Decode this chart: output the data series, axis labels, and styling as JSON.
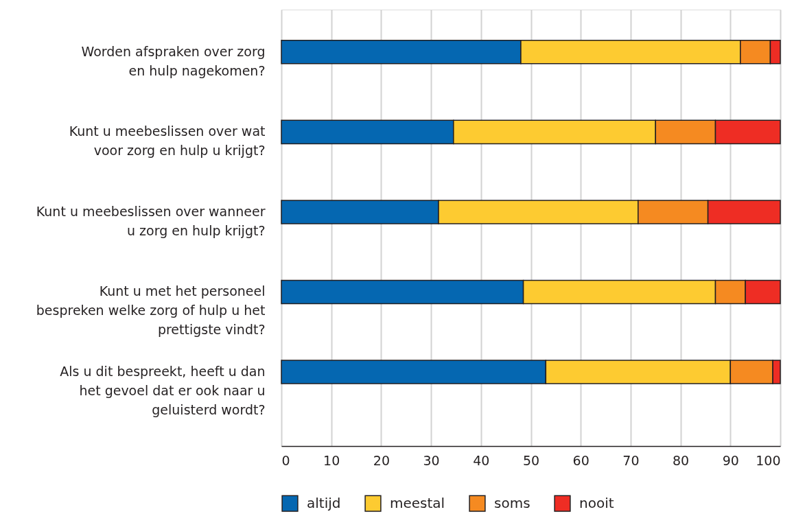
{
  "chart_data": {
    "type": "bar",
    "orientation": "horizontal",
    "stacked": true,
    "categories": [
      "Worden afspraken over zorg\nen hulp nagekomen?",
      "Kunt u meebeslissen over wat\nvoor zorg en hulp u krijgt?",
      "Kunt u meebeslissen over wanneer\nu zorg en hulp krijgt?",
      "Kunt u met het personeel\nbespreken welke zorg of hulp u het\nprettigste vindt?",
      "Als u dit bespreekt, heeft u dan\nhet gevoel dat er ook naar u\ngeluisterd wordt?"
    ],
    "series": [
      {
        "name": "altijd",
        "color": "#0567b1",
        "values": [
          48,
          34.5,
          31.5,
          48.5,
          53
        ]
      },
      {
        "name": "meestal",
        "color": "#fdcb31",
        "values": [
          44,
          40.5,
          40,
          38.5,
          37
        ]
      },
      {
        "name": "soms",
        "color": "#f58a21",
        "values": [
          6,
          12,
          14,
          6,
          8.5
        ]
      },
      {
        "name": "nooit",
        "color": "#ee2d24",
        "values": [
          2,
          13,
          14.5,
          7,
          1.5
        ]
      }
    ],
    "xlim": [
      0,
      100
    ],
    "xticks": [
      0,
      10,
      20,
      30,
      40,
      50,
      60,
      70,
      80,
      90,
      100
    ],
    "grid": "x",
    "legend": "bottom"
  }
}
